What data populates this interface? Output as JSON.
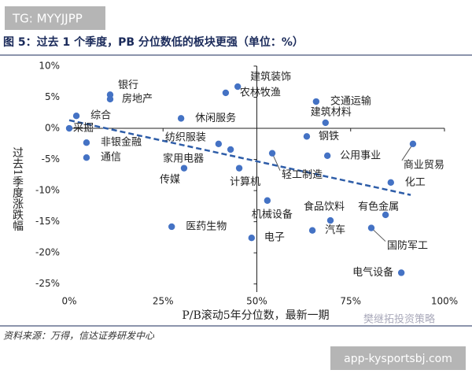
{
  "header": {
    "tag": "TG: MYYJJPP"
  },
  "chart_data": {
    "type": "scatter",
    "title": "图 5：过去 1 个季度，PB 分位数低的板块更强（单位：%）",
    "xlabel": "P/B滚动5年分位数，最新一期",
    "ylabel": "过去1季度涨跌幅",
    "color": "#4472c4",
    "categories": [
      "综合",
      "采掘",
      "银行",
      "房地产",
      "非银金融",
      "通信",
      "休闲服务",
      "纺织服装",
      "家用电器",
      "传媒",
      "计算机",
      "建筑装饰",
      "农林牧渔",
      "交通运输",
      "建筑材料",
      "钢铁",
      "公用事业",
      "轻工制造",
      "机械设备",
      "食品饮料",
      "有色金属",
      "汽车",
      "电子",
      "医药生物",
      "国防军工",
      "电气设备",
      "商业贸易",
      "化工"
    ],
    "x": [
      1.9,
      0,
      10.9,
      10.9,
      4.6,
      4.6,
      29.8,
      39.8,
      43,
      30.6,
      45.3,
      44.9,
      41.7,
      65.8,
      68.3,
      63.3,
      68.8,
      54.1,
      52.8,
      69.6,
      84.3,
      64.8,
      48.6,
      27.3,
      80.5,
      88.5,
      91.6,
      85.7
    ],
    "values": [
      2.0,
      0,
      5.4,
      4.7,
      -2.3,
      -4.7,
      1.6,
      -2.5,
      -3.4,
      -6.4,
      -6.4,
      6.7,
      5.7,
      4.3,
      0.9,
      -1.3,
      -4.4,
      -4.0,
      -11.6,
      -14.8,
      -13.9,
      -16.4,
      -17.6,
      -15.8,
      -16.0,
      -23.2,
      -2.5,
      -8.7
    ],
    "trend": {
      "x": [
        0,
        91
      ],
      "values": [
        1.3,
        -10.7
      ]
    },
    "xlim": [
      0,
      100
    ],
    "ylim": [
      -26.3,
      10.5
    ],
    "xticks": [
      {
        "value": 0,
        "label": "0%"
      },
      {
        "value": 25,
        "label": "25%"
      },
      {
        "value": 50,
        "label": "50%"
      },
      {
        "value": 75,
        "label": "75%"
      },
      {
        "value": 100,
        "label": "100%"
      }
    ],
    "yticks": [
      {
        "value": 10,
        "label": "10%"
      },
      {
        "value": 5,
        "label": "5%"
      },
      {
        "value": 0,
        "label": "0%"
      },
      {
        "value": -5,
        "label": "-5%"
      },
      {
        "value": -10,
        "label": "-10%"
      },
      {
        "value": -15,
        "label": "-15%"
      },
      {
        "value": -20,
        "label": "-20%"
      },
      {
        "value": -25,
        "label": "-25%"
      }
    ]
  },
  "source": "资料来源：万得，信达证券研发中心",
  "watermark": "樊继拓投资策略",
  "footer": {
    "url": "app-kysportsbj.com"
  }
}
